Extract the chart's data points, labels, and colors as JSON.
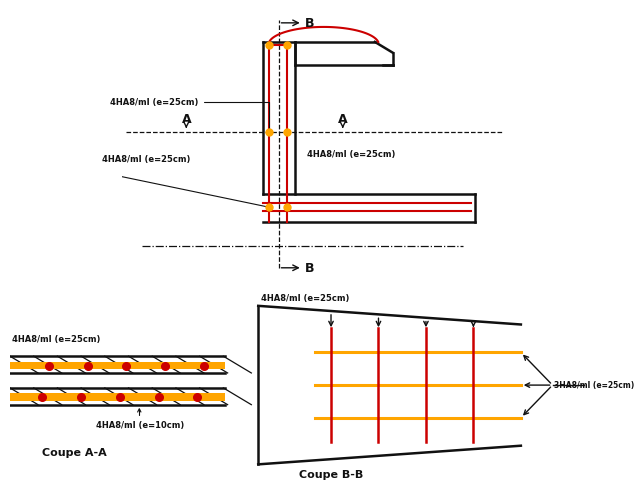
{
  "bg": "#ffffff",
  "orange": "#FFA500",
  "red": "#CC0000",
  "black": "#111111",
  "lw": 1.8,
  "lw_r": 1.5,
  "fs": 6.0,
  "fst": 8.0,
  "label_wall_AA": "4HA8/ml (e=25cm)",
  "label_wall_slab": "4HA8/ml (e=25cm)",
  "label_wall_right": "4HA8/ml (e=25cm)",
  "label_aa_top": "4HA8/ml (e=25cm)",
  "label_aa_bot": "4HA8/ml (e=10cm)",
  "label_bb_top": "4HA8/ml (e=25cm)",
  "label_bb_right": "3HA8/ml (e=25cm)",
  "caption_aa": "Coupe A-A",
  "caption_bb": "Coupe B-B"
}
